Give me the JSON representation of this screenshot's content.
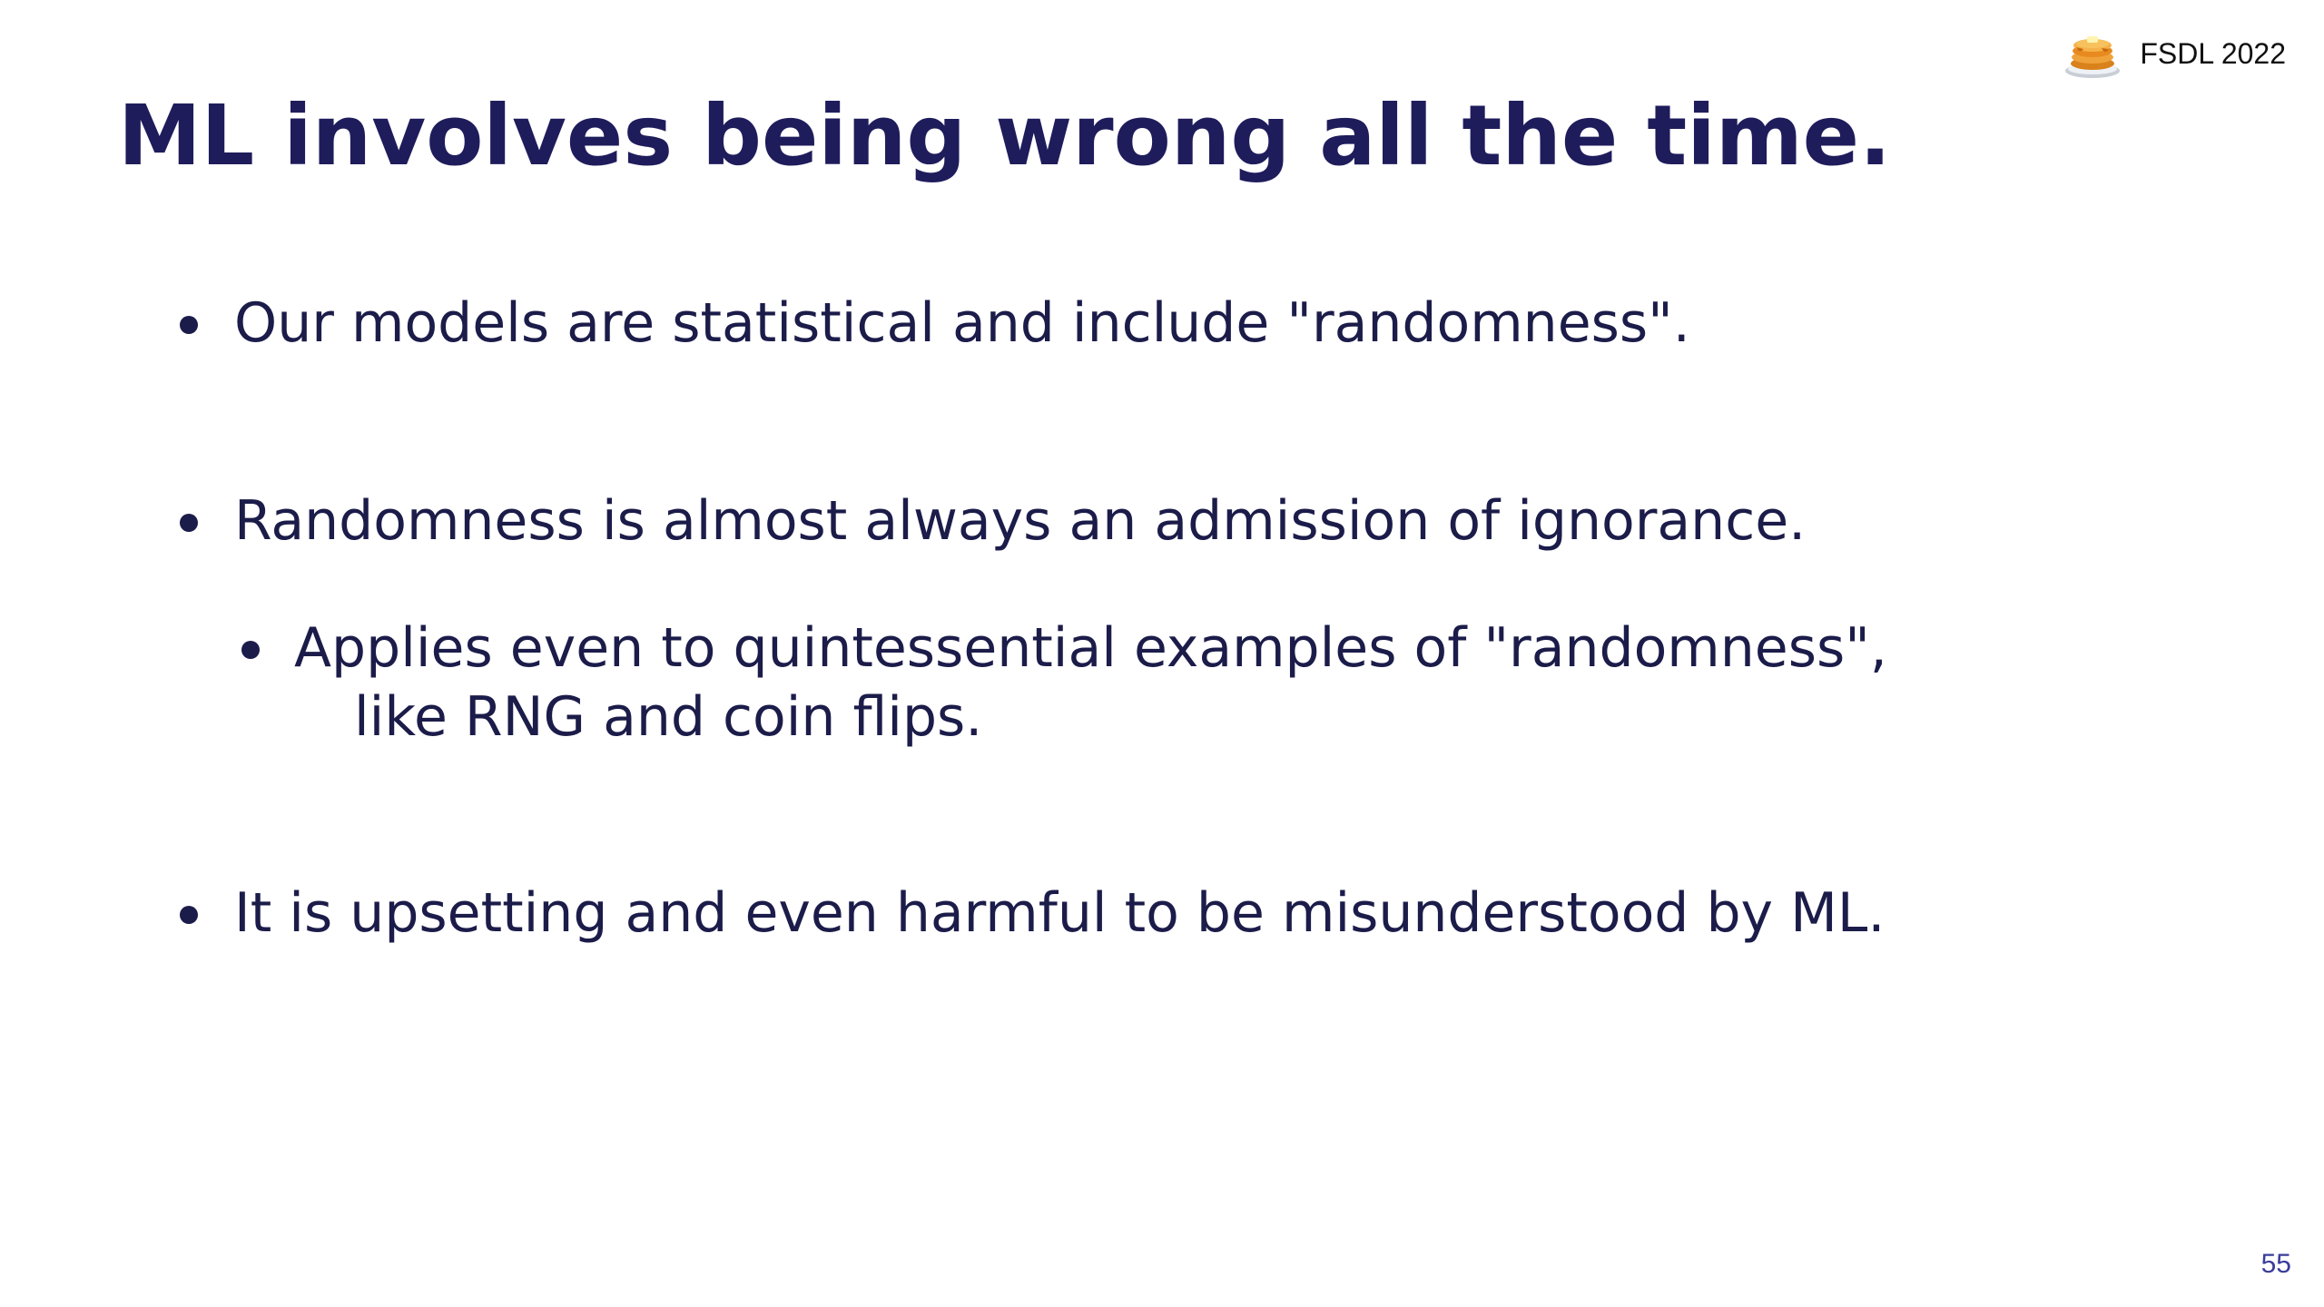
{
  "slide": {
    "title": "ML involves being wrong all the time.",
    "brand": {
      "logo_icon": "pancake-stack-icon",
      "text": "FSDL 2022"
    },
    "bullets": [
      {
        "text": "Our models are statistical and include \"randomness\"."
      },
      {
        "text": "Randomness is almost always an admission of ignorance."
      },
      {
        "text_line1": "Applies even to quintessential examples of \"randomness\",",
        "text_line2": "like RNG and coin flips."
      },
      {
        "text": "It is upsetting and even harmful to be misunderstood by ML."
      }
    ],
    "page_number": "55"
  },
  "colors": {
    "title": "#1f1c5c",
    "body_text": "#1c1c4a",
    "page_number": "#3a3d9a",
    "background": "#ffffff"
  }
}
